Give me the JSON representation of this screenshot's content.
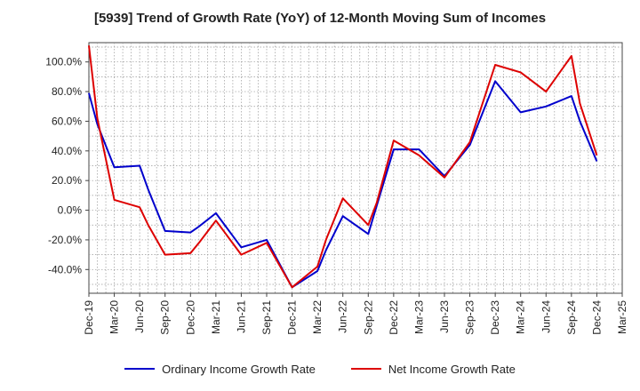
{
  "chart_data": {
    "type": "line",
    "title": "[5939]  Trend of Growth Rate (YoY) of 12-Month Moving Sum of Incomes",
    "xlabel": "",
    "ylabel": "",
    "x_tick_labels": [
      "Dec-19",
      "Mar-20",
      "Jun-20",
      "Sep-20",
      "Dec-20",
      "Mar-21",
      "Jun-21",
      "Sep-21",
      "Dec-21",
      "Mar-22",
      "Jun-22",
      "Sep-22",
      "Dec-22",
      "Mar-23",
      "Jun-23",
      "Sep-23",
      "Dec-23",
      "Mar-24",
      "Jun-24",
      "Sep-24",
      "Dec-24",
      "Mar-25"
    ],
    "y_tick_labels": [
      "-40.0%",
      "-20.0%",
      "0.0%",
      "20.0%",
      "40.0%",
      "60.0%",
      "80.0%",
      "100.0%"
    ],
    "y_ticks": [
      -40,
      -20,
      0,
      20,
      40,
      60,
      80,
      100
    ],
    "ylim": [
      -56,
      113
    ],
    "grid": true,
    "legend_position": "bottom",
    "x": [
      "Dec-19",
      "Jan-20",
      "Mar-20",
      "Jun-20",
      "Jul-20",
      "Aug-20",
      "Sep-20",
      "Dec-20",
      "Jan-21",
      "Mar-21",
      "Jun-21",
      "Sep-21",
      "Dec-21",
      "Mar-22",
      "Apr-22",
      "Jun-22",
      "Sep-22",
      "Oct-22",
      "Dec-22",
      "Mar-23",
      "Jun-23",
      "Sep-23",
      "Dec-23",
      "Mar-24",
      "Jun-24",
      "Sep-24",
      "Oct-24",
      "Dec-24"
    ],
    "series": [
      {
        "name": "Ordinary Income Growth Rate",
        "color": "#0000cc",
        "values": [
          79,
          58,
          29,
          30,
          14,
          0,
          -14,
          -15,
          -11,
          -2,
          -25,
          -20,
          -52,
          -41,
          -27,
          -4,
          -16,
          3,
          41,
          41,
          23,
          44,
          87,
          66,
          70,
          77,
          60,
          33
        ]
      },
      {
        "name": "Net Income Growth Rate",
        "color": "#dd0000",
        "values": [
          111,
          62,
          7,
          2,
          -10,
          -20,
          -30,
          -29,
          -22,
          -7,
          -30,
          -22,
          -52,
          -38,
          -20,
          8,
          -10,
          5,
          47,
          37,
          22,
          46,
          98,
          93,
          80,
          104,
          72,
          37
        ]
      }
    ]
  }
}
